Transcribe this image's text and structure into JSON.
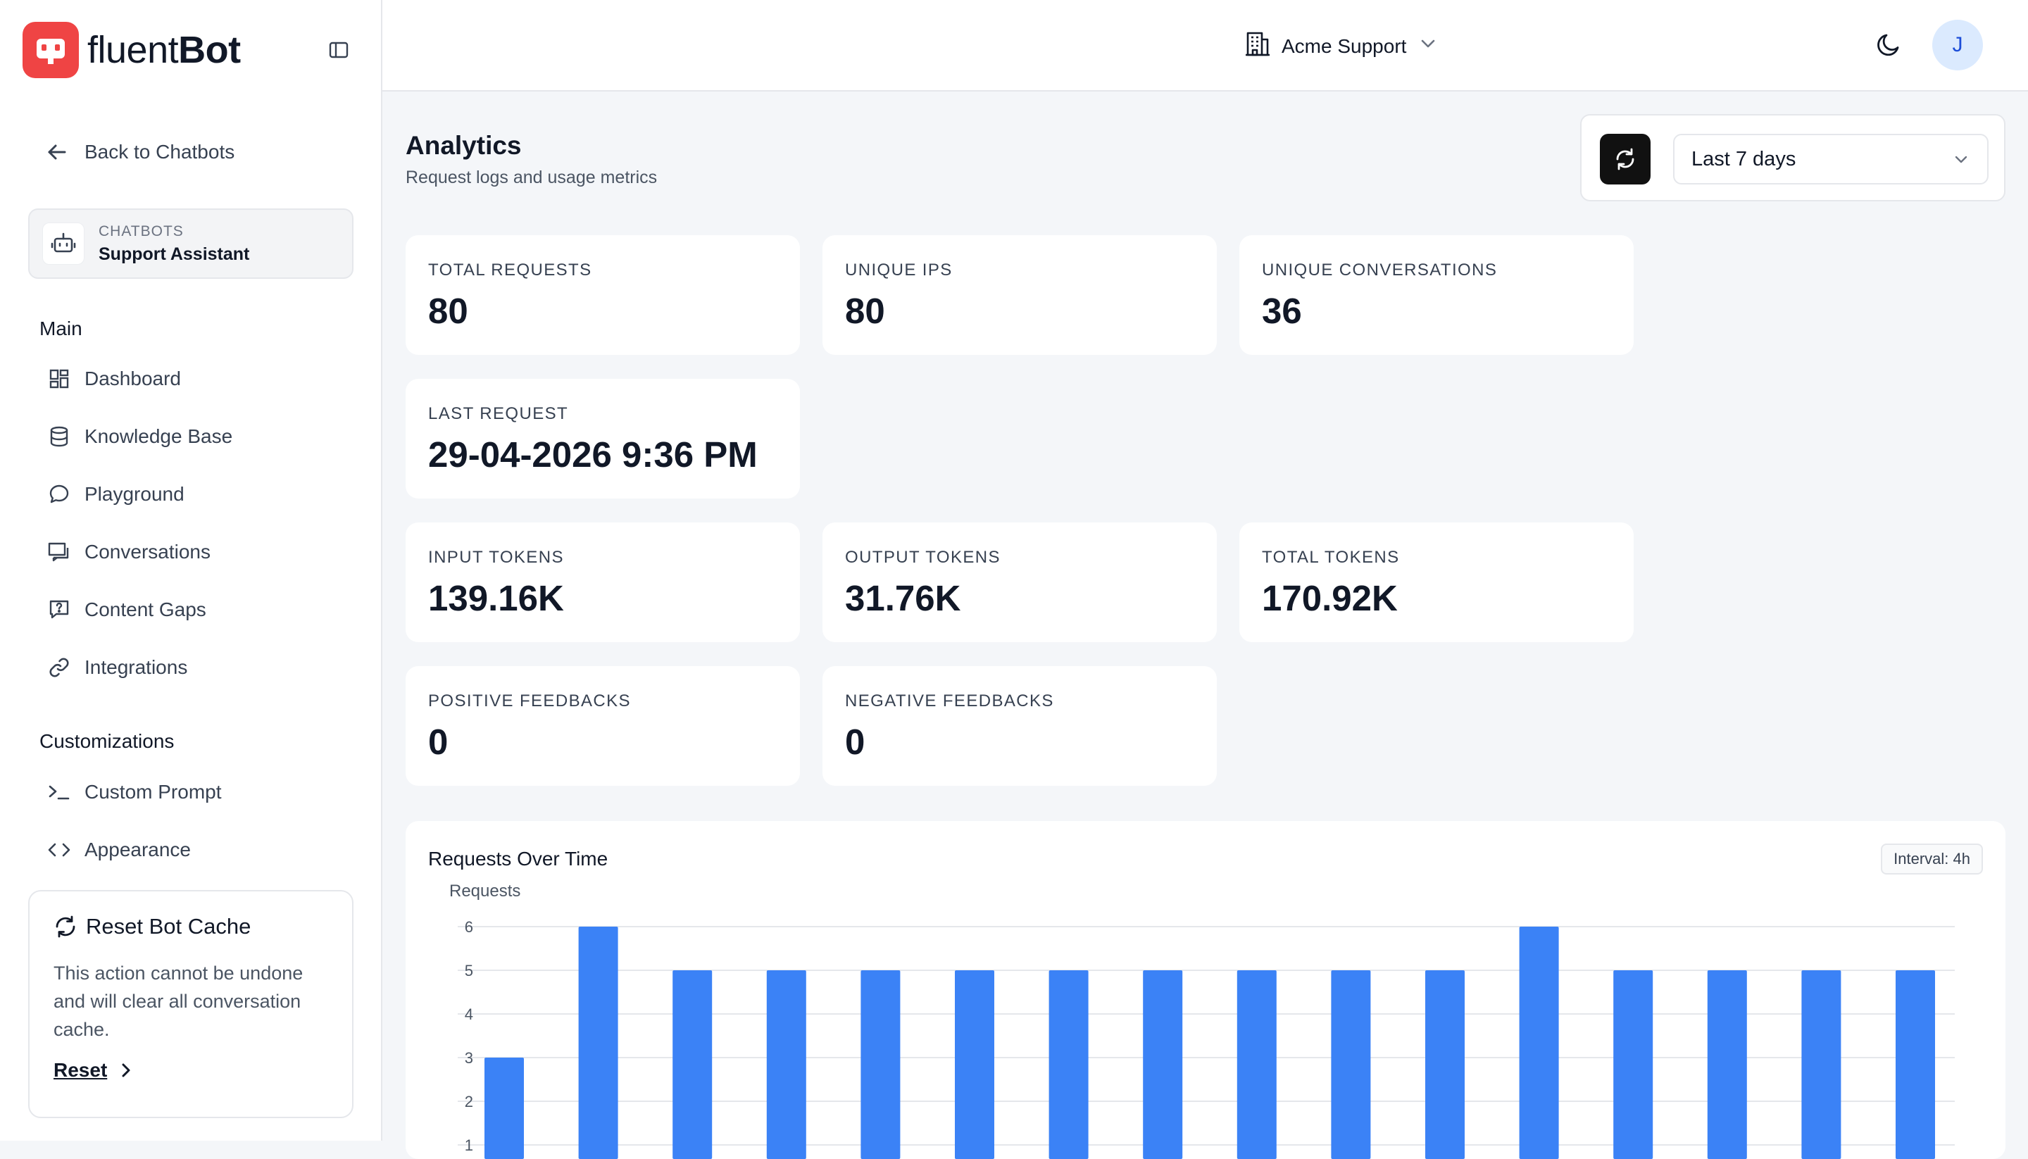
{
  "app": {
    "logo_light": "fluent",
    "logo_bold": "Bot",
    "brand_color": "#ef4444"
  },
  "sidebar": {
    "back_label": "Back to Chatbots",
    "bot_kicker": "CHATBOTS",
    "bot_name": "Support Assistant",
    "main_heading": "Main",
    "main_items": [
      {
        "label": "Dashboard",
        "icon": "dashboard-icon"
      },
      {
        "label": "Knowledge Base",
        "icon": "database-icon"
      },
      {
        "label": "Playground",
        "icon": "chat-bubble-icon"
      },
      {
        "label": "Conversations",
        "icon": "conversations-icon"
      },
      {
        "label": "Content Gaps",
        "icon": "question-square-icon"
      },
      {
        "label": "Integrations",
        "icon": "link-icon"
      }
    ],
    "custom_heading": "Customizations",
    "custom_items": [
      {
        "label": "Custom Prompt",
        "icon": "terminal-icon"
      },
      {
        "label": "Appearance",
        "icon": "code-icon"
      }
    ],
    "reset_card": {
      "title": "Reset Bot Cache",
      "description": "This action cannot be undone and will clear all conversation cache.",
      "link": "Reset"
    }
  },
  "topbar": {
    "org_name": "Acme Support",
    "avatar_initial": "J"
  },
  "header": {
    "title": "Analytics",
    "subtitle": "Request logs and usage metrics",
    "range_selected": "Last 7 days"
  },
  "stats": [
    {
      "label": "TOTAL REQUESTS",
      "value": "80"
    },
    {
      "label": "UNIQUE IPS",
      "value": "80"
    },
    {
      "label": "UNIQUE CONVERSATIONS",
      "value": "36"
    },
    {
      "label": "LAST REQUEST",
      "value": "29-04-2026 9:36 PM"
    },
    {
      "label": "INPUT TOKENS",
      "value": "139.16K"
    },
    {
      "label": "OUTPUT TOKENS",
      "value": "31.76K"
    },
    {
      "label": "TOTAL TOKENS",
      "value": "170.92K"
    },
    {
      "label": "POSITIVE FEEDBACKS",
      "value": "0"
    },
    {
      "label": "NEGATIVE FEEDBACKS",
      "value": "0"
    }
  ],
  "chart_card": {
    "title": "Requests Over Time",
    "interval": "Interval: 4h"
  },
  "chart_data": {
    "type": "bar",
    "title": "Requests Over Time",
    "ylabel": "Requests",
    "xlabel": "",
    "values": [
      3,
      6,
      5,
      5,
      5,
      5,
      5,
      5,
      5,
      5,
      5,
      6,
      5,
      5,
      5,
      5
    ],
    "y_ticks": [
      "1",
      "2",
      "3",
      "4",
      "5",
      "6"
    ],
    "ylim": [
      0,
      6
    ],
    "bar_color": "#3b82f6",
    "grid": true
  }
}
